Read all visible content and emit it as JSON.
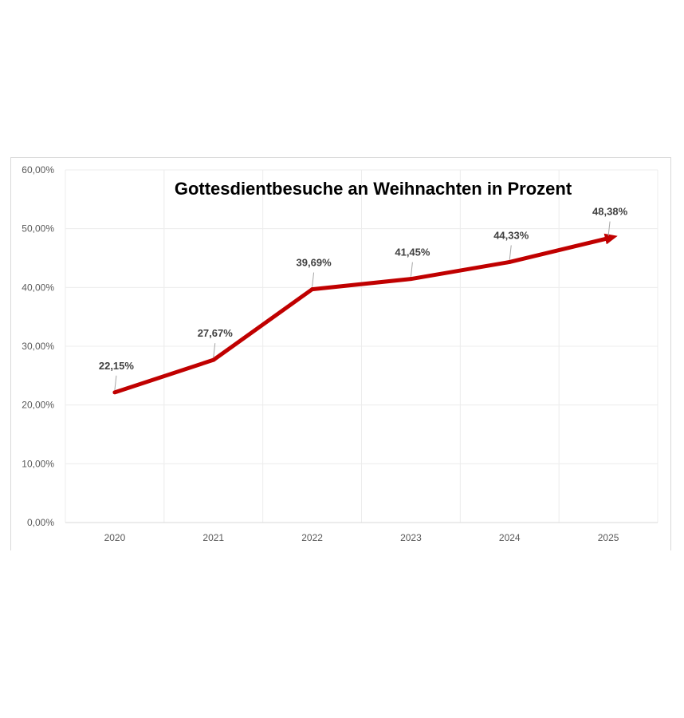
{
  "chart_data": {
    "type": "line",
    "title": "Gottesdientbesuche an Weihnachten in Prozent",
    "xlabel": "",
    "ylabel": "",
    "categories": [
      "2020",
      "2021",
      "2022",
      "2023",
      "2024",
      "2025"
    ],
    "series": [
      {
        "values": [
          22.15,
          27.67,
          39.69,
          41.45,
          44.33,
          48.38
        ],
        "labels": [
          "22,15%",
          "27,67%",
          "39,69%",
          "41,45%",
          "44,33%",
          "48,38%"
        ],
        "color": "#c00000"
      }
    ],
    "ylim": [
      0,
      60
    ],
    "yticks": [
      0,
      10,
      20,
      30,
      40,
      50,
      60
    ],
    "ytick_labels": [
      "0,00%",
      "10,00%",
      "20,00%",
      "30,00%",
      "40,00%",
      "50,00%",
      "60,00%"
    ],
    "grid": true,
    "legend": "none",
    "line_end": "arrow"
  }
}
